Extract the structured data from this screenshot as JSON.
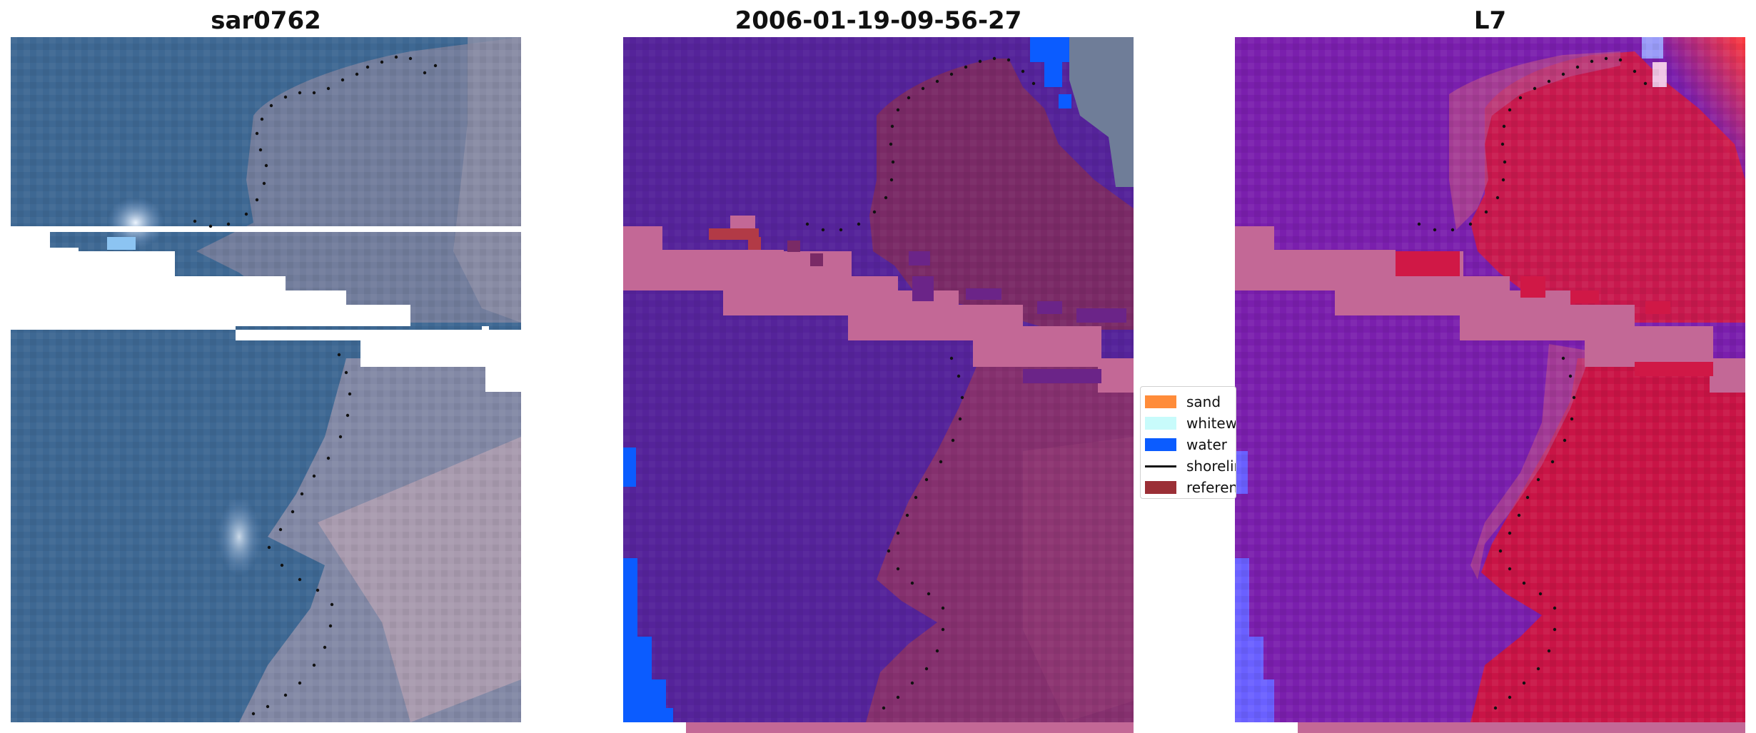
{
  "panels": {
    "left": {
      "title": "sar0762"
    },
    "middle": {
      "title": "2006-01-19-09-56-27"
    },
    "right": {
      "title": "L7"
    }
  },
  "legend": {
    "items": [
      {
        "label": "sand",
        "color": "#ff8c3a",
        "kind": "patch"
      },
      {
        "label": "whitewater",
        "color": "#c8fbfb",
        "kind": "patch"
      },
      {
        "label": "water",
        "color": "#0b5cff",
        "kind": "patch"
      },
      {
        "label": "shoreline",
        "color": "#111111",
        "kind": "line"
      },
      {
        "label": "reference shoreline",
        "color": "#9b2f36",
        "kind": "patch"
      }
    ]
  },
  "colors": {
    "water_purple": "#55239a",
    "land_maroon": "#7a2a66",
    "nodata_pink": "#c36896",
    "sea_blue": "#3d6891",
    "land_gray": "#8d8faa",
    "index_red": "#d01846",
    "index_purple": "#7a1fad"
  }
}
